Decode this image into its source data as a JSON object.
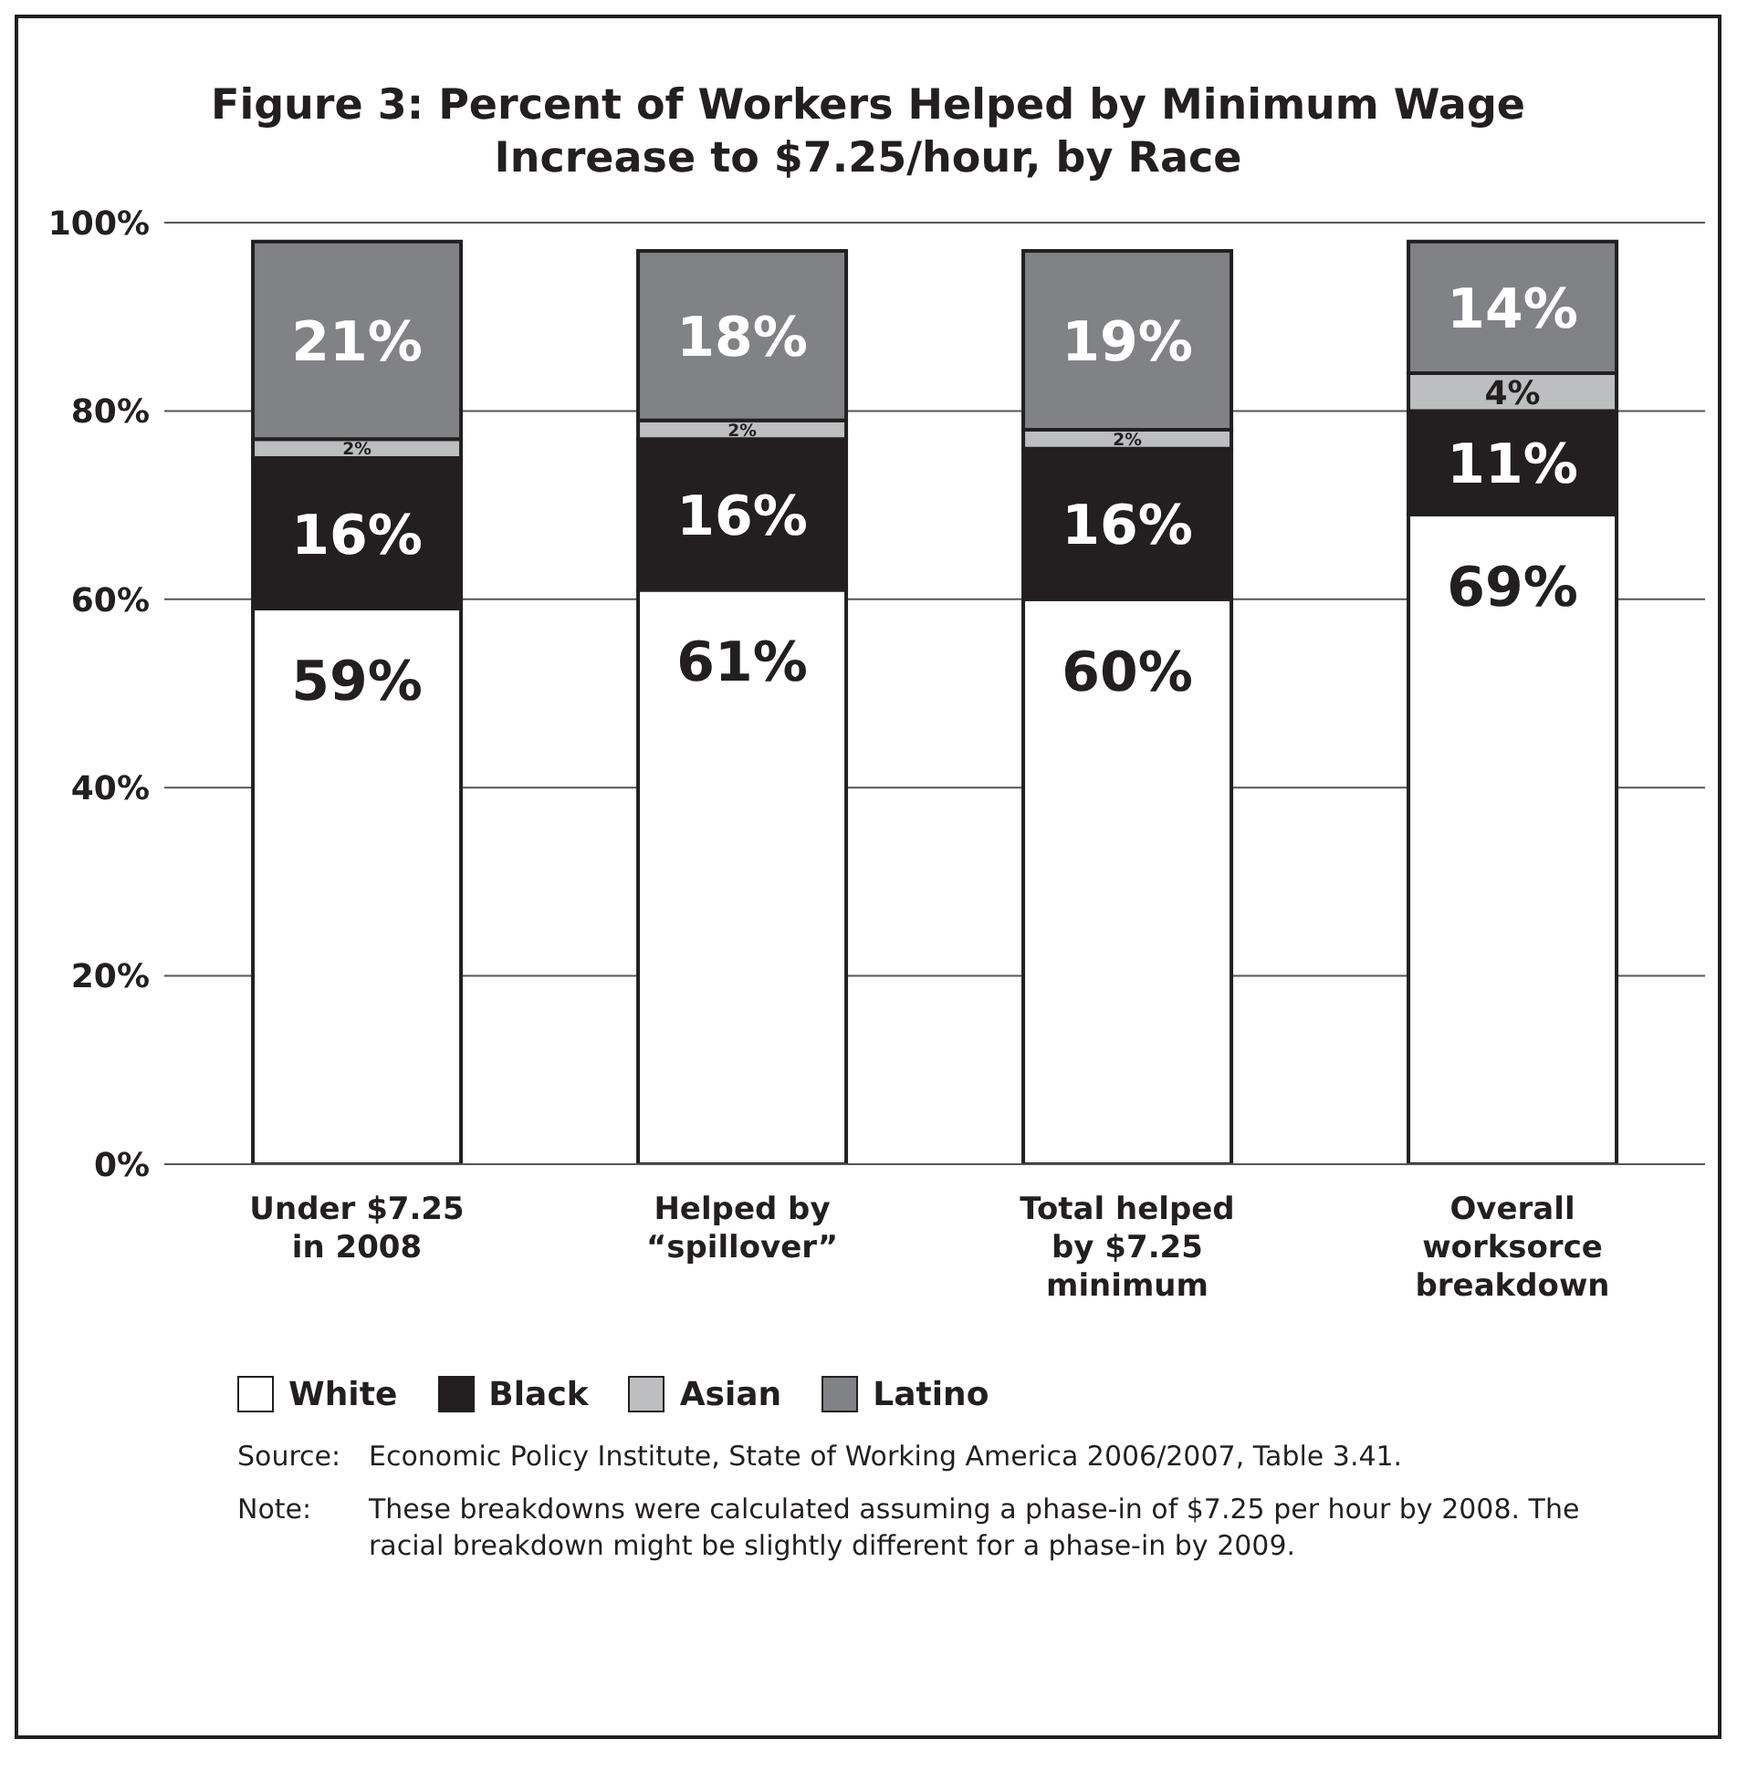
{
  "chart_data": {
    "type": "bar",
    "stacked": true,
    "title": "Figure 3:  Percent of Workers Helped by Minimum Wage Increase to $7.25/hour, by Race",
    "categories": [
      "Under $7.25 in 2008",
      "Helped by “spillover”",
      "Total helped by $7.25 minimum",
      "Overall worksorce breakdown"
    ],
    "series": [
      {
        "name": "White",
        "color": "#ffffff",
        "values": [
          59,
          61,
          60,
          69
        ],
        "value_labels": [
          "59%",
          "61%",
          "60%",
          "69%"
        ]
      },
      {
        "name": "Black",
        "color": "#231f20",
        "values": [
          16,
          16,
          16,
          11
        ],
        "value_labels": [
          "16%",
          "16%",
          "16%",
          "11%"
        ]
      },
      {
        "name": "Asian",
        "color": "#bcbec0",
        "values": [
          2,
          2,
          2,
          4
        ],
        "value_labels": [
          "2%",
          "2%",
          "2%",
          "4%"
        ]
      },
      {
        "name": "Latino",
        "color": "#808285",
        "values": [
          21,
          18,
          19,
          14
        ],
        "value_labels": [
          "21%",
          "18%",
          "19%",
          "14%"
        ]
      }
    ],
    "ylim": [
      0,
      100
    ],
    "yticks": [
      {
        "value": 0,
        "label": "0%"
      },
      {
        "value": 20,
        "label": "20%"
      },
      {
        "value": 40,
        "label": "40%"
      },
      {
        "value": 60,
        "label": "60%"
      },
      {
        "value": 80,
        "label": "80%"
      },
      {
        "value": 100,
        "label": "100%"
      }
    ],
    "grid": "y",
    "legend": "bottom",
    "annotations": [
      "Source:   Economic Policy Institute, State of Working America 2006/2007, Table 3.41.",
      "Note:   These breakdowns were calculated assuming a phase-in of $7.25 per hour by 2008. The racial breakdown might be slightly different for a phase-in by 2009."
    ]
  }
}
